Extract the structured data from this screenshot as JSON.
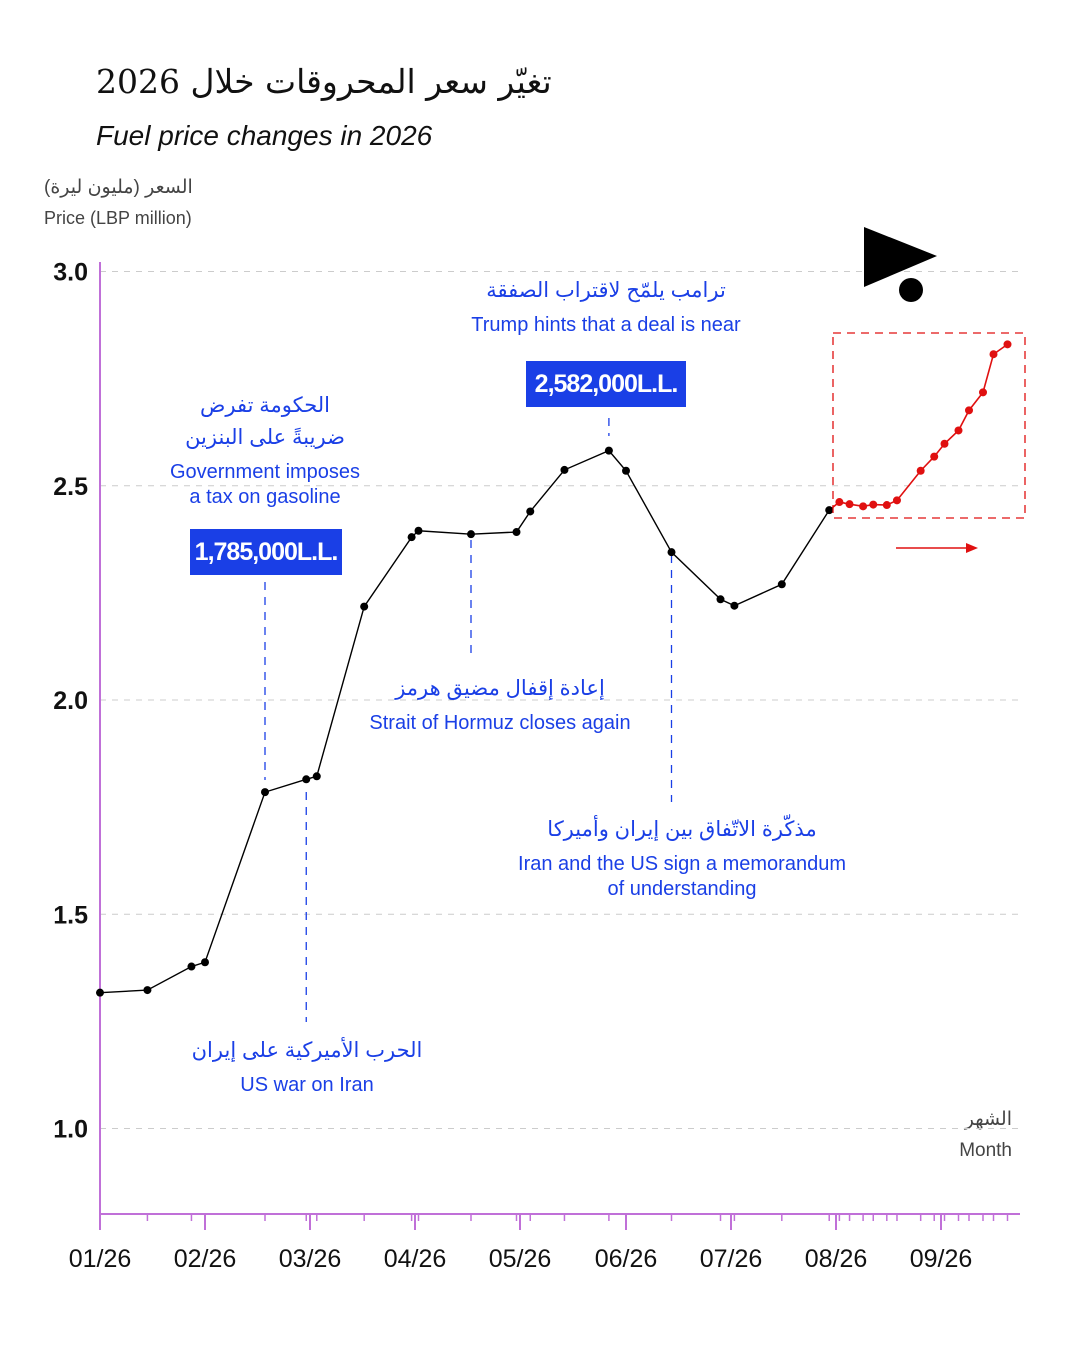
{
  "title_ar": "تغيّر سعر المحروقات خلال 2026",
  "title_en": "Fuel price changes in 2026",
  "y_label_ar": "السعر (مليون ليرة)",
  "y_label_en": "Price (LBP million)",
  "x_label_ar": "الشهر",
  "x_label_en": "Month",
  "colors": {
    "line": "#000000",
    "forecast": "#e01010",
    "annotation": "#1a3fe6",
    "axis": "#c070d8",
    "grid": "#cccccc"
  },
  "annotations": [
    {
      "ar": "الحكومة تفرض\nضريبةً على البنزين",
      "en": "Government imposes\na tax on gasoline",
      "price": "1,785,000L.L."
    },
    {
      "ar": "ترامب يلمّح لاقتراب الصفقة",
      "en": "Trump hints that a deal is near",
      "price": "2,582,000L.L."
    },
    {
      "ar": "إعادة إقفال مضيق هرمز",
      "en": "Strait of Hormuz closes again"
    },
    {
      "ar": "مذكّرة الاتّفاق بين إيران وأميركا",
      "en": "Iran and the US sign a memorandum\nof understanding"
    },
    {
      "ar": "الحرب الأميركية على إيران",
      "en": "US war on Iran"
    }
  ],
  "chart_data": {
    "type": "line",
    "title": "Fuel price changes in 2026",
    "xlabel": "Month",
    "ylabel": "Price (LBP million)",
    "ylim": [
      0.8,
      3.0
    ],
    "y_ticks": [
      "1.0",
      "1.5",
      "2.0",
      "2.5",
      "3.0"
    ],
    "x_ticks": [
      "01/26",
      "02/26",
      "03/26",
      "04/26",
      "05/26",
      "06/26",
      "07/26",
      "08/26",
      "09/26"
    ],
    "grid": true,
    "series": [
      {
        "values": [
          [
            "01/01",
            1.317
          ],
          [
            "01/15",
            1.323
          ],
          [
            "01/28",
            1.378
          ],
          [
            "02/01",
            1.388
          ],
          [
            "02/17",
            1.785
          ],
          [
            "02/28",
            1.815
          ],
          [
            "03/03",
            1.822
          ],
          [
            "03/17",
            2.218
          ],
          [
            "03/31",
            2.38
          ],
          [
            "04/02",
            2.395
          ],
          [
            "04/17",
            2.387
          ],
          [
            "04/30",
            2.392
          ],
          [
            "05/04",
            2.44
          ],
          [
            "05/14",
            2.537
          ],
          [
            "05/27",
            2.582
          ],
          [
            "06/01",
            2.535
          ],
          [
            "06/14",
            2.345
          ],
          [
            "06/28",
            2.235
          ],
          [
            "07/02",
            2.22
          ],
          [
            "07/16",
            2.27
          ],
          [
            "07/30",
            2.443
          ]
        ]
      },
      {
        "values": [
          [
            "08/02",
            2.462
          ],
          [
            "08/05",
            2.457
          ],
          [
            "08/09",
            2.452
          ],
          [
            "08/12",
            2.456
          ],
          [
            "08/16",
            2.455
          ],
          [
            "08/19",
            2.466
          ],
          [
            "08/26",
            2.535
          ],
          [
            "08/30",
            2.568
          ],
          [
            "09/02",
            2.598
          ],
          [
            "09/06",
            2.629
          ],
          [
            "09/09",
            2.676
          ],
          [
            "09/13",
            2.718
          ],
          [
            "09/16",
            2.807
          ],
          [
            "09/20",
            2.83
          ]
        ]
      }
    ]
  }
}
